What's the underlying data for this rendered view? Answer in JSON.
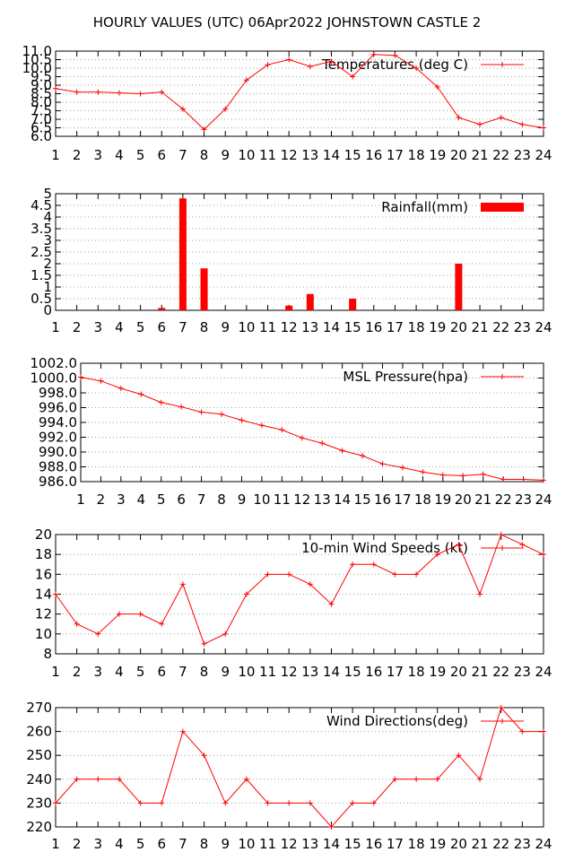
{
  "title": "HOURLY VALUES (UTC) 06Apr2022  JOHNSTOWN CASTLE 2",
  "colors": {
    "series": "#ff0000",
    "grid": "#a0a0a0",
    "axis": "#000000"
  },
  "chart_data": [
    {
      "type": "line",
      "legend": "Temperatures (deg C)",
      "legend_position": "top-right",
      "grid": true,
      "x": [
        1,
        2,
        3,
        4,
        5,
        6,
        7,
        8,
        9,
        10,
        11,
        12,
        13,
        14,
        15,
        16,
        17,
        18,
        19,
        20,
        21,
        22,
        23,
        24
      ],
      "values": [
        8.8,
        8.6,
        8.6,
        8.55,
        8.5,
        8.6,
        7.6,
        6.4,
        7.6,
        9.3,
        10.2,
        10.5,
        10.1,
        10.4,
        9.5,
        10.8,
        10.75,
        10.0,
        8.9,
        7.1,
        6.7,
        7.1,
        6.7,
        6.5
      ],
      "ylim": [
        6.0,
        11.0
      ],
      "yticks": [
        "6.0",
        "6.5",
        "7.0",
        "7.5",
        "8.0",
        "8.5",
        "9.0",
        "9.5",
        "10.0",
        "10.5",
        "11.0"
      ],
      "xticks": [
        "1",
        "2",
        "3",
        "4",
        "5",
        "6",
        "7",
        "8",
        "9",
        "10",
        "11",
        "12",
        "13",
        "14",
        "15",
        "16",
        "17",
        "18",
        "19",
        "20",
        "21",
        "22",
        "23",
        "24"
      ]
    },
    {
      "type": "bar",
      "legend": "Rainfall(mm)",
      "legend_position": "top-right",
      "grid": true,
      "x": [
        1,
        2,
        3,
        4,
        5,
        6,
        7,
        8,
        9,
        10,
        11,
        12,
        13,
        14,
        15,
        16,
        17,
        18,
        19,
        20,
        21,
        22,
        23,
        24
      ],
      "values": [
        0,
        0,
        0,
        0,
        0,
        0.1,
        4.8,
        1.8,
        0,
        0,
        0,
        0.2,
        0.7,
        0,
        0.5,
        0,
        0,
        0,
        0,
        2.0,
        0,
        0,
        0,
        0
      ],
      "ylim": [
        0,
        5
      ],
      "yticks": [
        "0",
        "0.5",
        "1",
        "1.5",
        "2",
        "2.5",
        "3",
        "3.5",
        "4",
        "4.5",
        "5"
      ],
      "xticks": [
        "1",
        "2",
        "3",
        "4",
        "5",
        "6",
        "7",
        "8",
        "9",
        "10",
        "11",
        "12",
        "13",
        "14",
        "15",
        "16",
        "17",
        "18",
        "19",
        "20",
        "21",
        "22",
        "23",
        "24"
      ]
    },
    {
      "type": "line",
      "legend": "MSL Pressure(hpa)",
      "legend_position": "top-right",
      "grid": true,
      "x": [
        1,
        2,
        3,
        4,
        5,
        6,
        7,
        8,
        9,
        10,
        11,
        12,
        13,
        14,
        15,
        16,
        17,
        18,
        19,
        20,
        21,
        22,
        23,
        24
      ],
      "values": [
        1000.1,
        999.6,
        998.6,
        997.8,
        996.7,
        996.1,
        995.4,
        995.1,
        994.3,
        993.6,
        993.0,
        991.9,
        991.2,
        990.2,
        989.5,
        988.4,
        987.9,
        987.3,
        986.9,
        986.8,
        987.0,
        986.3,
        986.3,
        986.2
      ],
      "ylim": [
        986.0,
        1002.0
      ],
      "yticks": [
        "986.0",
        "988.0",
        "990.0",
        "992.0",
        "994.0",
        "996.0",
        "998.0",
        "1000.0",
        "1002.0"
      ],
      "xticks": [
        "1",
        "2",
        "3",
        "4",
        "5",
        "6",
        "7",
        "8",
        "9",
        "10",
        "11",
        "12",
        "13",
        "14",
        "15",
        "16",
        "17",
        "18",
        "19",
        "20",
        "21",
        "22",
        "23",
        "24"
      ]
    },
    {
      "type": "line",
      "legend": "10-min Wind Speeds (kt)",
      "legend_position": "top-right",
      "grid": true,
      "x": [
        1,
        2,
        3,
        4,
        5,
        6,
        7,
        8,
        9,
        10,
        11,
        12,
        13,
        14,
        15,
        16,
        17,
        18,
        19,
        20,
        21,
        22,
        23,
        24
      ],
      "values": [
        14,
        11,
        10,
        12,
        12,
        11,
        15,
        9,
        10,
        14,
        16,
        16,
        15,
        13,
        17,
        17,
        16,
        16,
        18,
        19,
        14,
        20,
        19,
        18
      ],
      "ylim": [
        8,
        20
      ],
      "yticks": [
        "8",
        "10",
        "12",
        "14",
        "16",
        "18",
        "20"
      ],
      "xticks": [
        "1",
        "2",
        "3",
        "4",
        "5",
        "6",
        "7",
        "8",
        "9",
        "10",
        "11",
        "12",
        "13",
        "14",
        "15",
        "16",
        "17",
        "18",
        "19",
        "20",
        "21",
        "22",
        "23",
        "24"
      ]
    },
    {
      "type": "line",
      "legend": "Wind Directions(deg)",
      "legend_position": "top-right",
      "grid": true,
      "x": [
        1,
        2,
        3,
        4,
        5,
        6,
        7,
        8,
        9,
        10,
        11,
        12,
        13,
        14,
        15,
        16,
        17,
        18,
        19,
        20,
        21,
        22,
        23,
        24
      ],
      "values": [
        230,
        240,
        240,
        240,
        230,
        230,
        260,
        250,
        230,
        240,
        230,
        230,
        230,
        220,
        230,
        230,
        240,
        240,
        240,
        250,
        240,
        270,
        260,
        260
      ],
      "ylim": [
        220,
        270
      ],
      "yticks": [
        "220",
        "230",
        "240",
        "250",
        "260",
        "270"
      ],
      "xticks": [
        "1",
        "2",
        "3",
        "4",
        "5",
        "6",
        "7",
        "8",
        "9",
        "10",
        "11",
        "12",
        "13",
        "14",
        "15",
        "16",
        "17",
        "18",
        "19",
        "20",
        "21",
        "22",
        "23",
        "24"
      ]
    }
  ]
}
